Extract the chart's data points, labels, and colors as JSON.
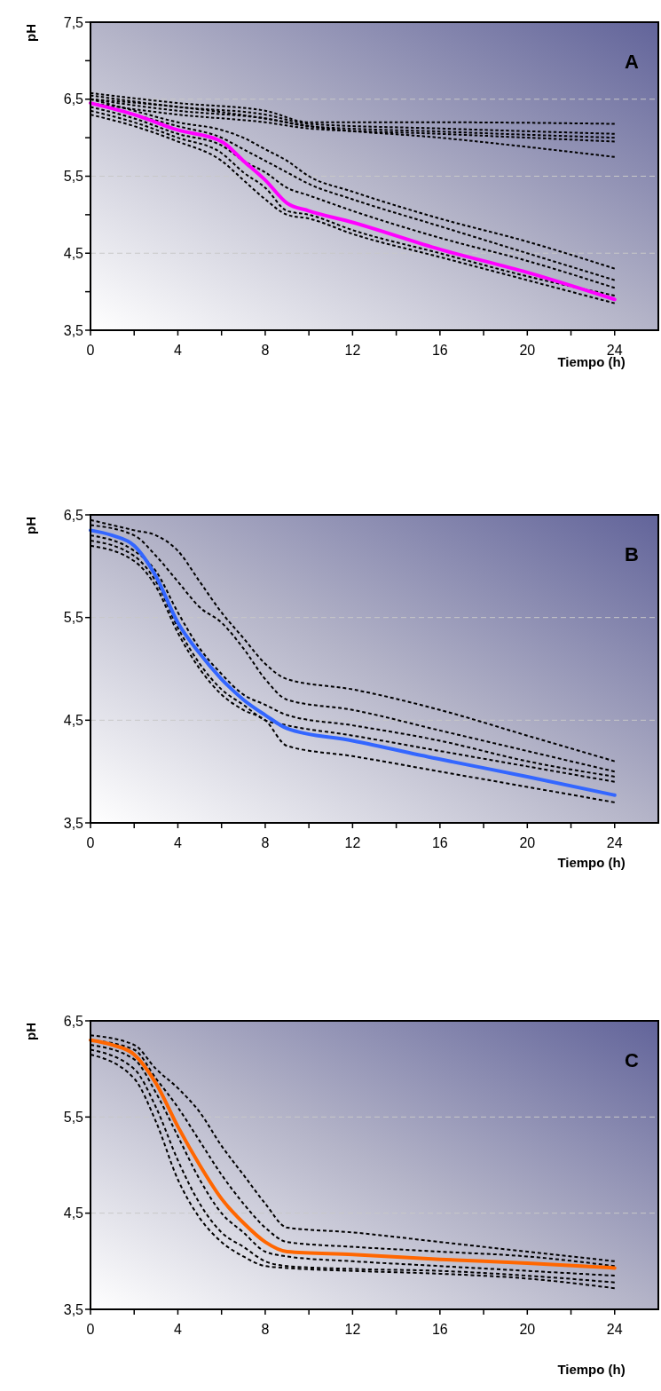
{
  "chart_data": [
    {
      "type": "line",
      "xlabel": "Tiempo (h)",
      "ylabel": "pH",
      "annotations": [
        "A"
      ],
      "line_style": "dashed",
      "grid": "y",
      "xlim": [
        0,
        26
      ],
      "ylim": [
        3.5,
        7.5
      ],
      "xticks": [
        0,
        {
          "value": 2,
          "label": null
        },
        4,
        {
          "value": 6,
          "label": null
        },
        8,
        {
          "value": 10,
          "label": null
        },
        12,
        {
          "value": 14,
          "label": null
        },
        16,
        {
          "value": 18,
          "label": null
        },
        20,
        {
          "value": 22,
          "label": null
        },
        24
      ],
      "yticks": [
        {
          "value": 3.5,
          "label": "3,5"
        },
        {
          "value": 4,
          "label": null
        },
        {
          "value": 4.5,
          "label": "4,5"
        },
        {
          "value": 5,
          "label": null
        },
        {
          "value": 5.5,
          "label": "5,5"
        },
        {
          "value": 6,
          "label": null
        },
        {
          "value": 6.5,
          "label": "6,5"
        },
        {
          "value": 7,
          "label": null
        },
        {
          "value": 7.5,
          "label": "7,5"
        }
      ],
      "series": [
        {
          "color": "#000000",
          "x": [
            0,
            4,
            8,
            10,
            16,
            24
          ],
          "values": [
            6.58,
            6.45,
            6.35,
            6.2,
            6.2,
            6.18
          ]
        },
        {
          "color": "#000000",
          "x": [
            0,
            4,
            8,
            10,
            16,
            24
          ],
          "values": [
            6.55,
            6.4,
            6.3,
            6.18,
            6.12,
            6.05
          ]
        },
        {
          "color": "#000000",
          "x": [
            0,
            4,
            8,
            10,
            16,
            24
          ],
          "values": [
            6.5,
            6.35,
            6.25,
            6.15,
            6.08,
            6.0
          ]
        },
        {
          "color": "#000000",
          "x": [
            0,
            4,
            8,
            10,
            16,
            24
          ],
          "values": [
            6.45,
            6.3,
            6.2,
            6.12,
            6.05,
            5.95
          ]
        },
        {
          "color": "#000000",
          "x": [
            0,
            4,
            8,
            10,
            16,
            24
          ],
          "values": [
            6.5,
            6.4,
            6.25,
            6.15,
            6.0,
            5.75
          ]
        },
        {
          "color": "#000000",
          "x": [
            0,
            2,
            4,
            6,
            7,
            8,
            9,
            10,
            12,
            16,
            20,
            24
          ],
          "values": [
            6.5,
            6.35,
            6.2,
            6.1,
            6.0,
            5.85,
            5.7,
            5.5,
            5.3,
            4.95,
            4.65,
            4.3
          ]
        },
        {
          "color": "#000000",
          "x": [
            0,
            2,
            4,
            6,
            7,
            8,
            9,
            10,
            12,
            16,
            20,
            24
          ],
          "values": [
            6.45,
            6.3,
            6.15,
            6.0,
            5.85,
            5.7,
            5.55,
            5.4,
            5.2,
            4.85,
            4.5,
            4.15
          ]
        },
        {
          "color": "#000000",
          "x": [
            0,
            2,
            4,
            6,
            7,
            8,
            9,
            10,
            12,
            16,
            20,
            24
          ],
          "values": [
            6.4,
            6.25,
            6.05,
            5.9,
            5.7,
            5.55,
            5.35,
            5.25,
            5.05,
            4.7,
            4.4,
            4.05
          ]
        },
        {
          "color": "#000000",
          "x": [
            0,
            2,
            4,
            6,
            7,
            8,
            9,
            10,
            12,
            16,
            20,
            24
          ],
          "values": [
            6.35,
            6.2,
            6.0,
            5.8,
            5.55,
            5.35,
            5.05,
            5.0,
            4.8,
            4.5,
            4.2,
            3.95
          ]
        },
        {
          "color": "#000000",
          "x": [
            0,
            2,
            4,
            6,
            7,
            8,
            9,
            10,
            12,
            16,
            20,
            24
          ],
          "values": [
            6.3,
            6.15,
            5.95,
            5.7,
            5.45,
            5.2,
            5.0,
            4.95,
            4.75,
            4.45,
            4.15,
            3.85
          ]
        },
        {
          "color": "#ff00ff",
          "line_style": "solid",
          "x": [
            0,
            2,
            4,
            6,
            7,
            8,
            9,
            10,
            12,
            16,
            20,
            24
          ],
          "values": [
            6.45,
            6.3,
            6.1,
            5.95,
            5.7,
            5.45,
            5.15,
            5.05,
            4.9,
            4.55,
            4.25,
            3.9
          ]
        }
      ]
    },
    {
      "type": "line",
      "xlabel": "Tiempo (h)",
      "ylabel": "pH",
      "annotations": [
        "B"
      ],
      "line_style": "dashed",
      "grid": "y",
      "xlim": [
        0,
        26
      ],
      "ylim": [
        3.5,
        6.5
      ],
      "xticks": [
        0,
        {
          "value": 2,
          "label": null
        },
        4,
        {
          "value": 6,
          "label": null
        },
        8,
        {
          "value": 10,
          "label": null
        },
        12,
        {
          "value": 14,
          "label": null
        },
        16,
        {
          "value": 18,
          "label": null
        },
        20,
        {
          "value": 22,
          "label": null
        },
        24
      ],
      "yticks": [
        {
          "value": 3.5,
          "label": "3,5"
        },
        {
          "value": 4.5,
          "label": "4,5"
        },
        {
          "value": 5.5,
          "label": "5,5"
        },
        {
          "value": 6.5,
          "label": "6,5"
        }
      ],
      "series": [
        {
          "color": "#000000",
          "x": [
            0,
            2,
            3,
            4,
            5,
            6,
            7,
            8,
            9,
            12,
            16,
            20,
            24
          ],
          "values": [
            6.45,
            6.35,
            6.3,
            6.15,
            5.85,
            5.55,
            5.3,
            5.05,
            4.9,
            4.8,
            4.6,
            4.35,
            4.1
          ]
        },
        {
          "color": "#000000",
          "x": [
            0,
            2,
            3,
            4,
            5,
            6,
            7,
            8,
            9,
            12,
            16,
            20,
            24
          ],
          "values": [
            6.4,
            6.3,
            6.1,
            5.85,
            5.6,
            5.45,
            5.2,
            4.9,
            4.7,
            4.6,
            4.4,
            4.2,
            4.0
          ]
        },
        {
          "color": "#000000",
          "x": [
            0,
            2,
            3,
            4,
            5,
            6,
            7,
            8,
            9,
            12,
            16,
            20,
            24
          ],
          "values": [
            6.3,
            6.15,
            5.95,
            5.55,
            5.2,
            4.95,
            4.75,
            4.65,
            4.55,
            4.45,
            4.3,
            4.1,
            3.95
          ]
        },
        {
          "color": "#000000",
          "x": [
            0,
            2,
            3,
            4,
            5,
            6,
            7,
            8,
            9,
            12,
            16,
            20,
            24
          ],
          "values": [
            6.25,
            6.1,
            5.85,
            5.4,
            5.05,
            4.8,
            4.65,
            4.5,
            4.45,
            4.35,
            4.2,
            4.05,
            3.9
          ]
        },
        {
          "color": "#000000",
          "x": [
            0,
            2,
            3,
            4,
            5,
            6,
            7,
            8,
            9,
            12,
            16,
            20,
            24
          ],
          "values": [
            6.2,
            6.05,
            5.8,
            5.35,
            5.0,
            4.75,
            4.6,
            4.5,
            4.25,
            4.15,
            4.0,
            3.85,
            3.7
          ]
        },
        {
          "color": "#3366ff",
          "line_style": "solid",
          "x": [
            0,
            1,
            2,
            3,
            4,
            5,
            6,
            7,
            8,
            9,
            12,
            16,
            20,
            24
          ],
          "values": [
            6.35,
            6.3,
            6.2,
            5.9,
            5.45,
            5.15,
            4.9,
            4.7,
            4.55,
            4.42,
            4.3,
            4.12,
            3.95,
            3.77
          ]
        }
      ]
    },
    {
      "type": "line",
      "xlabel": "Tiempo (h)",
      "ylabel": "pH",
      "annotations": [
        "C"
      ],
      "line_style": "dashed",
      "grid": "y",
      "xlim": [
        0,
        26
      ],
      "ylim": [
        3.5,
        6.5
      ],
      "xticks": [
        0,
        {
          "value": 2,
          "label": null
        },
        4,
        {
          "value": 6,
          "label": null
        },
        8,
        {
          "value": 10,
          "label": null
        },
        12,
        {
          "value": 14,
          "label": null
        },
        16,
        {
          "value": 18,
          "label": null
        },
        20,
        {
          "value": 22,
          "label": null
        },
        24
      ],
      "yticks": [
        {
          "value": 3.5,
          "label": "3,5"
        },
        {
          "value": 4.5,
          "label": "4,5"
        },
        {
          "value": 5.5,
          "label": "5,5"
        },
        {
          "value": 6.5,
          "label": "6,5"
        }
      ],
      "series": [
        {
          "color": "#000000",
          "x": [
            0,
            2,
            3,
            4,
            5,
            6,
            7,
            8,
            9,
            12,
            16,
            20,
            24
          ],
          "values": [
            6.35,
            6.25,
            6.0,
            5.8,
            5.55,
            5.2,
            4.9,
            4.6,
            4.35,
            4.3,
            4.2,
            4.1,
            4.0
          ]
        },
        {
          "color": "#000000",
          "x": [
            0,
            2,
            3,
            4,
            5,
            6,
            7,
            8,
            9,
            12,
            16,
            20,
            24
          ],
          "values": [
            6.3,
            6.2,
            5.9,
            5.6,
            5.25,
            4.9,
            4.6,
            4.35,
            4.2,
            4.15,
            4.1,
            4.05,
            3.95
          ]
        },
        {
          "color": "#000000",
          "x": [
            0,
            2,
            3,
            4,
            5,
            6,
            7,
            8,
            9,
            12,
            16,
            20,
            24
          ],
          "values": [
            6.25,
            6.1,
            5.75,
            5.3,
            4.85,
            4.5,
            4.3,
            4.1,
            4.05,
            4.0,
            3.95,
            3.9,
            3.85
          ]
        },
        {
          "color": "#000000",
          "x": [
            0,
            2,
            3,
            4,
            5,
            6,
            7,
            8,
            9,
            12,
            16,
            20,
            24
          ],
          "values": [
            6.2,
            6.0,
            5.6,
            5.05,
            4.6,
            4.3,
            4.15,
            4.0,
            3.95,
            3.92,
            3.9,
            3.85,
            3.78
          ]
        },
        {
          "color": "#000000",
          "x": [
            0,
            2,
            3,
            4,
            5,
            6,
            7,
            8,
            9,
            12,
            16,
            20,
            24
          ],
          "values": [
            6.15,
            5.9,
            5.45,
            4.85,
            4.45,
            4.2,
            4.05,
            3.95,
            3.93,
            3.9,
            3.87,
            3.82,
            3.72
          ]
        },
        {
          "color": "#ff6600",
          "line_style": "solid",
          "x": [
            0,
            1,
            2,
            3,
            4,
            5,
            6,
            7,
            8,
            9,
            12,
            16,
            20,
            24
          ],
          "values": [
            6.3,
            6.25,
            6.15,
            5.85,
            5.4,
            5.0,
            4.65,
            4.4,
            4.2,
            4.1,
            4.07,
            4.02,
            3.98,
            3.93
          ]
        }
      ]
    }
  ]
}
